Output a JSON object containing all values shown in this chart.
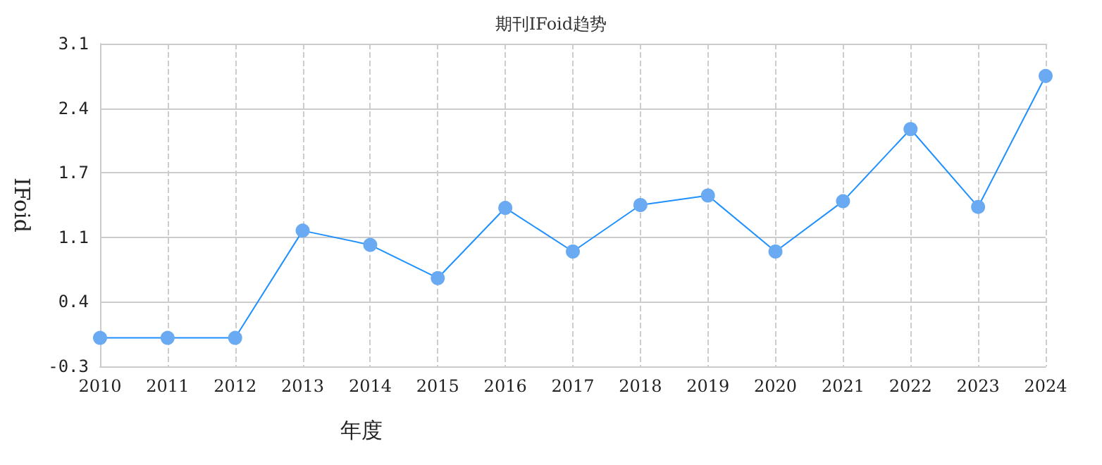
{
  "chart_data": {
    "type": "line",
    "title": "期刊IFoid趋势",
    "xlabel": "年度",
    "ylabel": "IFoid",
    "categories": [
      "2010",
      "2011",
      "2012",
      "2013",
      "2014",
      "2015",
      "2016",
      "2017",
      "2018",
      "2019",
      "2020",
      "2021",
      "2022",
      "2023",
      "2024"
    ],
    "series": [
      {
        "color": "#1e90ff",
        "values": [
          0,
          0,
          0,
          1.13,
          0.98,
          0.63,
          1.37,
          0.91,
          1.4,
          1.5,
          0.91,
          1.44,
          2.2,
          1.38,
          2.76
        ]
      }
    ],
    "ylim": [
      -0.3,
      3.1
    ],
    "yticks": [
      -0.3,
      {
        "value": 0.38,
        "label": "0.4"
      },
      {
        "value": 1.06,
        "label": "1.1"
      },
      {
        "value": 1.74,
        "label": "1.7"
      },
      {
        "value": 2.42,
        "label": "2.4"
      },
      3.1
    ],
    "grid": true,
    "marker": "circle",
    "line_style": "solid"
  }
}
